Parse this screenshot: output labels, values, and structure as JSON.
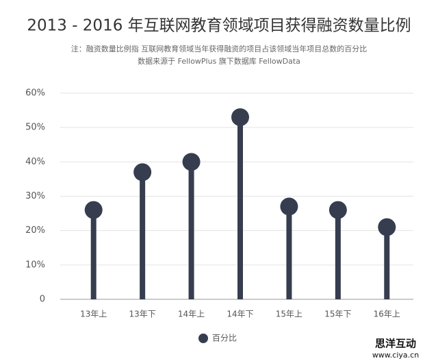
{
  "chart_data": {
    "type": "lollipop",
    "title": "2013 - 2016 年互联网教育领域项目获得融资数量比例",
    "subtitle": [
      "注：融资数量比例指   互联网教育领域当年获得融资的项目占该领域当年项目总数的百分比",
      "数据来源于 FellowPlus 旗下数据库 FellowData"
    ],
    "categories": [
      "13年上",
      "13年下",
      "14年上",
      "14年下",
      "15年上",
      "15年下",
      "16年上"
    ],
    "series": [
      {
        "name": "百分比",
        "color": "#363d4f",
        "values": [
          26,
          37,
          40,
          53,
          27,
          26,
          21
        ]
      }
    ],
    "ylim": [
      0,
      60
    ],
    "yticks": [
      0,
      {
        "value": 10,
        "label": "10%"
      },
      {
        "value": 20,
        "label": "20%"
      },
      {
        "value": 30,
        "label": "30%"
      },
      {
        "value": 40,
        "label": "40%"
      },
      {
        "value": 50,
        "label": "50%"
      },
      {
        "value": 60,
        "label": "60%"
      }
    ],
    "grid": true,
    "legend": "bottom",
    "watermark": [
      "思洋互动",
      "www.ciya.cn"
    ]
  }
}
